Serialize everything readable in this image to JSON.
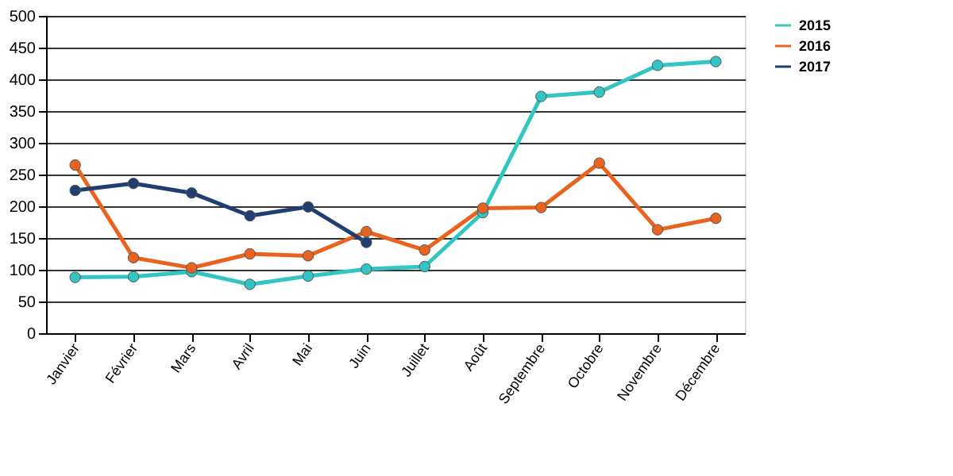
{
  "chart_data": {
    "type": "line",
    "categories": [
      "Janvier",
      "Février",
      "Mars",
      "Avril",
      "Mai",
      "Juin",
      "Juillet",
      "Août",
      "Septembre",
      "Octobre",
      "Novembre",
      "Décembre"
    ],
    "series": [
      {
        "name": "2015",
        "color": "#33c4c4",
        "values": [
          88,
          89,
          97,
          77,
          90,
          101,
          105,
          190,
          373,
          380,
          422,
          428
        ]
      },
      {
        "name": "2016",
        "color": "#e8641e",
        "values": [
          265,
          119,
          103,
          125,
          122,
          160,
          131,
          197,
          198,
          268,
          163,
          181
        ]
      },
      {
        "name": "2017",
        "color": "#1f3f73",
        "values": [
          225,
          236,
          221,
          185,
          199,
          143,
          null,
          null,
          null,
          null,
          null,
          null
        ]
      }
    ],
    "ylim": [
      0,
      500
    ],
    "yticks": [
      0,
      50,
      100,
      150,
      200,
      250,
      300,
      350,
      400,
      450,
      500
    ],
    "grid": "y",
    "legend": "right",
    "marker": "circle",
    "line_style": "solid"
  }
}
